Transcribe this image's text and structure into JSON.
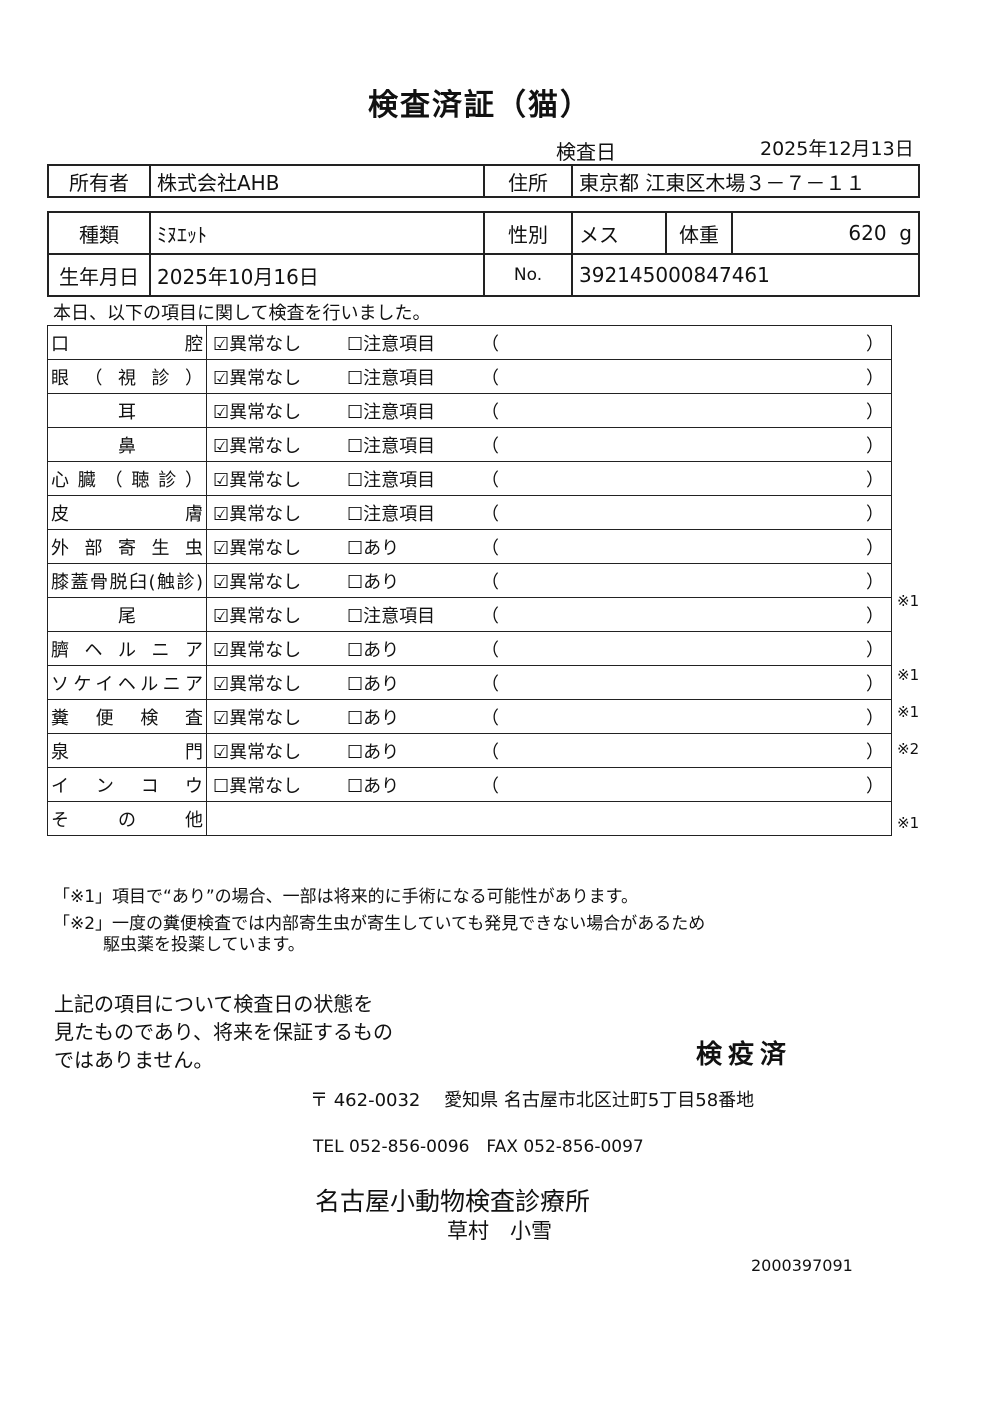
{
  "title": "検査済証（猫）",
  "exam_date_label": "検査日",
  "exam_date": "2025年12月13日",
  "owner": {
    "label": "所有者",
    "value": "株式会社AHB",
    "address_label": "住所",
    "address": "東京都 江東区木場３－７－１１"
  },
  "pet": {
    "breed_label": "種類",
    "breed": "ﾐﾇｴｯﾄ",
    "sex_label": "性別",
    "sex": "メス",
    "weight_label": "体重",
    "weight": "620",
    "weight_unit": "g",
    "dob_label": "生年月日",
    "dob": "2025年10月16日",
    "no_label": "No.",
    "no": "392145000847461"
  },
  "intro": "本日、以下の項目に関して検査を行いました。",
  "items": [
    {
      "label": "口腔",
      "normal": "異常なし",
      "normal_checked": true,
      "alt": "注意項目",
      "alt_checked": false,
      "note": ""
    },
    {
      "label": "眼（視診）",
      "normal": "異常なし",
      "normal_checked": true,
      "alt": "注意項目",
      "alt_checked": false,
      "note": ""
    },
    {
      "label": "耳",
      "normal": "異常なし",
      "normal_checked": true,
      "alt": "注意項目",
      "alt_checked": false,
      "note": ""
    },
    {
      "label": "鼻",
      "normal": "異常なし",
      "normal_checked": true,
      "alt": "注意項目",
      "alt_checked": false,
      "note": ""
    },
    {
      "label": "心臓（聴診）",
      "normal": "異常なし",
      "normal_checked": true,
      "alt": "注意項目",
      "alt_checked": false,
      "note": ""
    },
    {
      "label": "皮膚",
      "normal": "異常なし",
      "normal_checked": true,
      "alt": "注意項目",
      "alt_checked": false,
      "note": ""
    },
    {
      "label": "外部寄生虫",
      "normal": "異常なし",
      "normal_checked": true,
      "alt": "あり",
      "alt_checked": false,
      "note": ""
    },
    {
      "label": "膝蓋骨脱臼(触診)",
      "normal": "異常なし",
      "normal_checked": true,
      "alt": "あり",
      "alt_checked": false,
      "note": "※1"
    },
    {
      "label": "尾",
      "normal": "異常なし",
      "normal_checked": true,
      "alt": "注意項目",
      "alt_checked": false,
      "note": ""
    },
    {
      "label": "臍ヘルニア",
      "normal": "異常なし",
      "normal_checked": true,
      "alt": "あり",
      "alt_checked": false,
      "note": "※1"
    },
    {
      "label": "ソケイヘルニア",
      "normal": "異常なし",
      "normal_checked": true,
      "alt": "あり",
      "alt_checked": false,
      "note": "※1"
    },
    {
      "label": "糞便検査",
      "normal": "異常なし",
      "normal_checked": true,
      "alt": "あり",
      "alt_checked": false,
      "note": "※2"
    },
    {
      "label": "泉門",
      "normal": "異常なし",
      "normal_checked": true,
      "alt": "あり",
      "alt_checked": false,
      "note": ""
    },
    {
      "label": "インコウ",
      "normal": "異常なし",
      "normal_checked": false,
      "alt": "あり",
      "alt_checked": false,
      "note": "※1"
    }
  ],
  "other_label": "その他",
  "footnotes": [
    "「※1」項目で“あり”の場合、一部は将来的に手術になる可能性があります。",
    "「※2」一度の糞便検査では内部寄生虫が寄生していても発見できない場合があるため",
    "駆虫薬を投薬しています。"
  ],
  "disclaimer": [
    "上記の項目について検査日の状態を",
    "見たものであり、将来を保証するもの",
    "ではありません。"
  ],
  "stamp": "検疫済",
  "clinic": {
    "address": "〒 462-0032　 愛知県 名古屋市北区辻町5丁目58番地",
    "tel": "TEL 052-856-0096　FAX 052-856-0097",
    "name": "名古屋小動物検査診療所",
    "vet": "草村　小雪"
  },
  "doc_number": "2000397091"
}
